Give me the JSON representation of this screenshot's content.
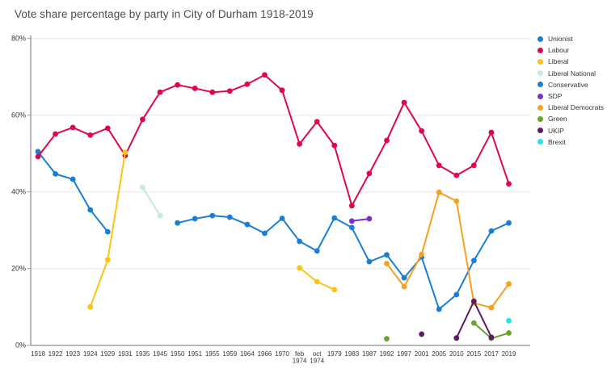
{
  "title": "Vote share percentage by party in City of Durham 1918-2019",
  "axes": {
    "y_tick_labels": [
      "0%",
      "20%",
      "40%",
      "60%",
      "80%"
    ],
    "x_tick_labels": [
      "1918",
      "1922",
      "1923",
      "1924",
      "1929",
      "1931",
      "1935",
      "1945",
      "1950",
      "1951",
      "1955",
      "1959",
      "1964",
      "1966",
      "1970",
      "feb 1974",
      "oct 1974",
      "1979",
      "1983",
      "1987",
      "1992",
      "1997",
      "2001",
      "2005",
      "2010",
      "2015",
      "2017",
      "2019"
    ]
  },
  "chart_data": {
    "type": "line",
    "title": "Vote share percentage by party in City of Durham 1918-2019",
    "xlabel": "",
    "ylabel": "",
    "ylim": [
      0,
      80
    ],
    "grid": true,
    "legend_position": "right",
    "categories": [
      "1918",
      "1922",
      "1923",
      "1924",
      "1929",
      "1931",
      "1935",
      "1945",
      "1950",
      "1951",
      "1955",
      "1959",
      "1964",
      "1966",
      "1970",
      "feb 1974",
      "oct 1974",
      "1979",
      "1983",
      "1987",
      "1992",
      "1997",
      "2001",
      "2005",
      "2010",
      "2015",
      "2017",
      "2019"
    ],
    "series": [
      {
        "name": "Unionist",
        "color": "#1a7fd4",
        "values": [
          50.5,
          44.7,
          43.3,
          35.3,
          29.6,
          null,
          null,
          null,
          null,
          null,
          null,
          null,
          null,
          null,
          null,
          null,
          null,
          null,
          null,
          null,
          null,
          null,
          null,
          null,
          null,
          null,
          null,
          null
        ]
      },
      {
        "name": "Labour",
        "color": "#e00748",
        "values": [
          49.2,
          55.1,
          56.8,
          54.8,
          56.6,
          49.5,
          58.9,
          66.0,
          67.9,
          67.0,
          66.0,
          66.3,
          68.1,
          70.5,
          66.5,
          52.5,
          58.3,
          52.1,
          36.4,
          44.8,
          53.4,
          63.3,
          55.9,
          46.9,
          44.3,
          46.9,
          55.5,
          42.1
        ]
      },
      {
        "name": "Liberal",
        "color": "#fcc40f",
        "values": [
          null,
          null,
          null,
          10.0,
          22.3,
          50.3,
          null,
          null,
          null,
          null,
          null,
          null,
          null,
          null,
          null,
          20.2,
          16.6,
          14.5,
          null,
          null,
          null,
          null,
          null,
          null,
          null,
          null,
          null,
          null
        ]
      },
      {
        "name": "Liberal National",
        "color": "#c5eae2",
        "values": [
          null,
          null,
          null,
          null,
          null,
          null,
          41.2,
          33.8,
          null,
          null,
          null,
          null,
          null,
          null,
          null,
          null,
          null,
          null,
          null,
          null,
          null,
          null,
          null,
          null,
          null,
          null,
          null,
          null
        ]
      },
      {
        "name": "Conservative",
        "color": "#1a7fd4",
        "values": [
          null,
          null,
          null,
          null,
          null,
          null,
          null,
          null,
          31.9,
          33.0,
          33.8,
          33.4,
          31.5,
          29.2,
          33.1,
          27.1,
          24.6,
          33.2,
          30.7,
          21.8,
          23.6,
          17.6,
          23.0,
          9.4,
          13.2,
          22.1,
          29.8,
          31.9
        ]
      },
      {
        "name": "SDP",
        "color": "#7d2fc9",
        "values": [
          null,
          null,
          null,
          null,
          null,
          null,
          null,
          null,
          null,
          null,
          null,
          null,
          null,
          null,
          null,
          null,
          null,
          null,
          32.4,
          33.0,
          null,
          null,
          null,
          null,
          null,
          null,
          null,
          null
        ]
      },
      {
        "name": "Liberal Democrats",
        "color": "#f7a01e",
        "values": [
          null,
          null,
          null,
          null,
          null,
          null,
          null,
          null,
          null,
          null,
          null,
          null,
          null,
          null,
          null,
          null,
          null,
          null,
          null,
          null,
          21.3,
          15.3,
          23.7,
          39.9,
          37.6,
          11.0,
          9.8,
          16.0
        ]
      },
      {
        "name": "Green",
        "color": "#68a32a",
        "values": [
          null,
          null,
          null,
          null,
          null,
          null,
          null,
          null,
          null,
          null,
          null,
          null,
          null,
          null,
          null,
          null,
          null,
          null,
          null,
          null,
          1.7,
          null,
          null,
          null,
          null,
          5.8,
          1.8,
          3.2
        ]
      },
      {
        "name": "UKIP",
        "color": "#5b1c63",
        "values": [
          null,
          null,
          null,
          null,
          null,
          null,
          null,
          null,
          null,
          null,
          null,
          null,
          null,
          null,
          null,
          null,
          null,
          null,
          null,
          null,
          null,
          null,
          2.9,
          null,
          1.9,
          11.5,
          2.1,
          null
        ]
      },
      {
        "name": "Brexit",
        "color": "#24e3ea",
        "values": [
          null,
          null,
          null,
          null,
          null,
          null,
          null,
          null,
          null,
          null,
          null,
          null,
          null,
          null,
          null,
          null,
          null,
          null,
          null,
          null,
          null,
          null,
          null,
          null,
          null,
          null,
          null,
          6.4
        ]
      }
    ]
  }
}
